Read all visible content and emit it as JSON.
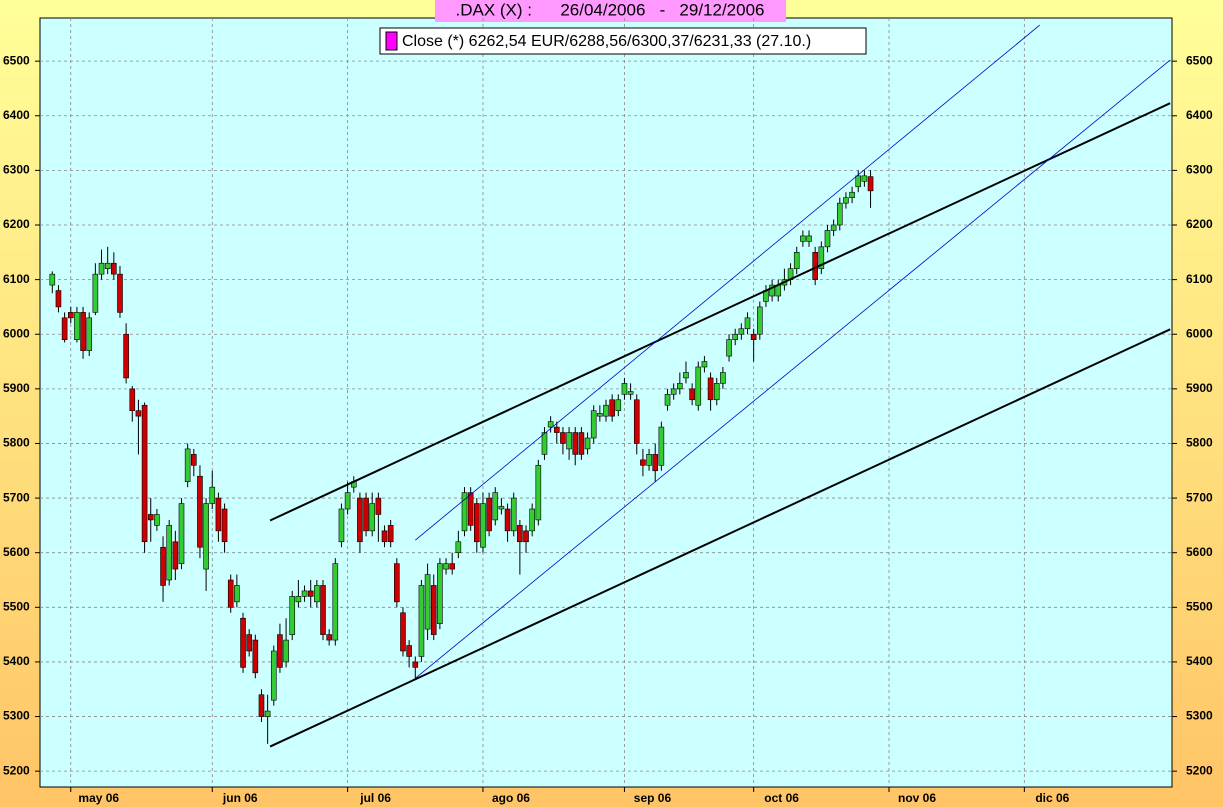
{
  "chart_data": {
    "type": "candlestick",
    "title": ".DAX (X) :      26/04/2006   -   29/12/2006",
    "legend_label": "Close (*) 6262,54 EUR/6288,56/6300,37/6231,33 (27.10.)",
    "legend_color": "#ff00ff",
    "up_color": "#33cc33",
    "down_color": "#cc0000",
    "grid": true,
    "xlim": [
      -2,
      182
    ],
    "xticks": [
      {
        "value": 3,
        "label": "may 06"
      },
      {
        "value": 26,
        "label": "jun 06"
      },
      {
        "value": 48,
        "label": "jul 06"
      },
      {
        "value": 70,
        "label": "ago 06"
      },
      {
        "value": 93,
        "label": "sep 06"
      },
      {
        "value": 114,
        "label": "oct 06"
      },
      {
        "value": 136,
        "label": "nov 06"
      },
      {
        "value": 158,
        "label": "dic 06"
      }
    ],
    "ylim": [
      5171,
      6579
    ],
    "yticks": [
      5200,
      5300,
      5400,
      5500,
      5600,
      5700,
      5800,
      5900,
      6000,
      6100,
      6200,
      6300,
      6400,
      6500
    ],
    "open": [
      6090,
      6080,
      6030,
      6040,
      5990,
      6040,
      5970,
      6040,
      6110,
      6120,
      6130,
      6110,
      6000,
      5900,
      5860,
      5870,
      5670,
      5650,
      5610,
      5550,
      5620,
      5580,
      5730,
      5780,
      5740,
      5570,
      5690,
      5700,
      5680,
      5550,
      5510,
      5480,
      5450,
      5440,
      5340,
      5300,
      5330,
      5450,
      5400,
      5450,
      5510,
      5520,
      5530,
      5510,
      5540,
      5450,
      5440,
      5620,
      5680,
      5720,
      5700,
      5700,
      5640,
      5700,
      5640,
      5650,
      5580,
      5490,
      5430,
      5400,
      5410,
      5460,
      5540,
      5470,
      5570,
      5580,
      5600,
      5640,
      5710,
      5690,
      5610,
      5700,
      5660,
      5680,
      5680,
      5640,
      5650,
      5640,
      5640,
      5660,
      5780,
      5830,
      5830,
      5820,
      5790,
      5820,
      5820,
      5790,
      5810,
      5850,
      5850,
      5880,
      5860,
      5890,
      5890,
      5880,
      5770,
      5760,
      5780,
      5760,
      5870,
      5890,
      5900,
      5920,
      5900,
      5870,
      5940,
      5920,
      5880,
      5910,
      5960,
      5990,
      6000,
      6010,
      6000,
      6000,
      6060,
      6070,
      6070,
      6090,
      6100,
      6120,
      6170,
      6170,
      6150,
      6120,
      6160,
      6190,
      6200,
      6240,
      6250,
      6270,
      6280,
      6288.56
    ],
    "high": [
      6115,
      6090,
      6040,
      6050,
      6050,
      6050,
      6040,
      6130,
      6155,
      6160,
      6150,
      6125,
      6020,
      5905,
      5880,
      5875,
      5700,
      5680,
      5630,
      5660,
      5640,
      5700,
      5800,
      5790,
      5760,
      5700,
      5750,
      5710,
      5690,
      5560,
      5560,
      5490,
      5460,
      5450,
      5350,
      5340,
      5430,
      5470,
      5480,
      5530,
      5550,
      5540,
      5550,
      5550,
      5550,
      5460,
      5590,
      5690,
      5730,
      5740,
      5710,
      5710,
      5710,
      5710,
      5650,
      5660,
      5590,
      5500,
      5440,
      5410,
      5550,
      5580,
      5560,
      5590,
      5590,
      5600,
      5640,
      5720,
      5720,
      5700,
      5710,
      5710,
      5720,
      5700,
      5690,
      5710,
      5660,
      5650,
      5690,
      5770,
      5830,
      5850,
      5840,
      5830,
      5830,
      5830,
      5830,
      5820,
      5870,
      5870,
      5880,
      5890,
      5890,
      5920,
      5910,
      5890,
      5790,
      5790,
      5800,
      5840,
      5900,
      5910,
      5930,
      5950,
      5910,
      5950,
      5960,
      5930,
      5920,
      5940,
      6000,
      6010,
      6020,
      6040,
      6010,
      6060,
      6090,
      6100,
      6100,
      6120,
      6130,
      6160,
      6190,
      6190,
      6160,
      6170,
      6200,
      6210,
      6250,
      6260,
      6270,
      6300,
      6300,
      6300.37
    ],
    "low": [
      6075,
      6040,
      5985,
      6020,
      5985,
      5955,
      5960,
      6035,
      6100,
      6110,
      6100,
      6030,
      5910,
      5840,
      5780,
      5600,
      5620,
      5640,
      5510,
      5540,
      5550,
      5570,
      5720,
      5740,
      5590,
      5530,
      5680,
      5620,
      5600,
      5490,
      5500,
      5380,
      5410,
      5370,
      5290,
      5250,
      5320,
      5380,
      5390,
      5440,
      5500,
      5510,
      5500,
      5500,
      5440,
      5430,
      5430,
      5610,
      5670,
      5710,
      5600,
      5630,
      5630,
      5620,
      5610,
      5610,
      5500,
      5410,
      5390,
      5370,
      5400,
      5440,
      5440,
      5460,
      5560,
      5560,
      5590,
      5630,
      5640,
      5600,
      5600,
      5630,
      5650,
      5670,
      5620,
      5630,
      5560,
      5600,
      5630,
      5650,
      5770,
      5820,
      5800,
      5780,
      5770,
      5760,
      5770,
      5780,
      5800,
      5840,
      5840,
      5840,
      5850,
      5880,
      5880,
      5780,
      5740,
      5750,
      5730,
      5750,
      5860,
      5880,
      5890,
      5910,
      5870,
      5860,
      5930,
      5860,
      5870,
      5900,
      5950,
      5980,
      5990,
      6000,
      5950,
      5990,
      6050,
      6060,
      6060,
      6080,
      6090,
      6110,
      6160,
      6160,
      6090,
      6110,
      6150,
      6180,
      6190,
      6230,
      6240,
      6260,
      6270,
      6231.33
    ],
    "close": [
      6110,
      6050,
      5990,
      6030,
      6040,
      5970,
      6030,
      6110,
      6130,
      6130,
      6110,
      6040,
      5920,
      5860,
      5850,
      5620,
      5660,
      5670,
      5540,
      5650,
      5570,
      5690,
      5790,
      5760,
      5610,
      5690,
      5720,
      5640,
      5620,
      5500,
      5540,
      5390,
      5420,
      5380,
      5300,
      5310,
      5420,
      5390,
      5440,
      5520,
      5520,
      5530,
      5520,
      5540,
      5450,
      5440,
      5580,
      5680,
      5710,
      5730,
      5620,
      5640,
      5690,
      5670,
      5620,
      5620,
      5510,
      5420,
      5410,
      5390,
      5540,
      5560,
      5450,
      5580,
      5580,
      5570,
      5620,
      5710,
      5650,
      5620,
      5690,
      5640,
      5710,
      5685,
      5640,
      5700,
      5620,
      5620,
      5680,
      5760,
      5820,
      5840,
      5820,
      5800,
      5820,
      5780,
      5780,
      5810,
      5860,
      5855,
      5870,
      5850,
      5880,
      5910,
      5895,
      5800,
      5760,
      5780,
      5750,
      5830,
      5890,
      5900,
      5910,
      5930,
      5880,
      5940,
      5950,
      5880,
      5910,
      5930,
      5990,
      6000,
      6010,
      6030,
      5990,
      6050,
      6080,
      6090,
      6090,
      6100,
      6120,
      6150,
      6180,
      6180,
      6100,
      6160,
      6190,
      6200,
      6240,
      6250,
      6260,
      6290,
      6290,
      6262.54
    ],
    "trendlines": [
      {
        "x": [
          35.4,
          181.7
        ],
        "y": [
          5659,
          6423
        ],
        "width": 2
      },
      {
        "x": [
          35.4,
          181.7
        ],
        "y": [
          5245,
          6009
        ],
        "width": 2
      },
      {
        "x": [
          59,
          160.5
        ],
        "y": [
          5623,
          6566
        ],
        "width": 0.8
      },
      {
        "x": [
          59,
          181.7
        ],
        "y": [
          5370,
          6502
        ],
        "width": 0.8
      }
    ]
  }
}
